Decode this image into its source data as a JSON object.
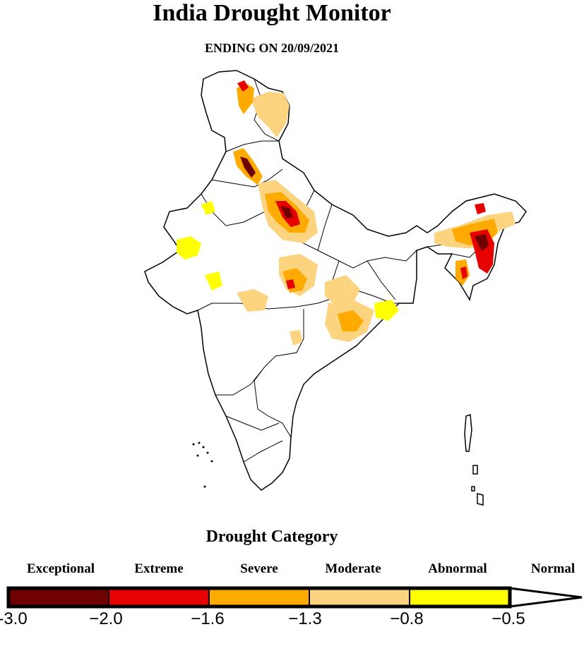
{
  "title": "India Drought Monitor",
  "subtitle": "ENDING ON 20/09/2021",
  "legend": {
    "title": "Drought Category",
    "categories": [
      {
        "label": "Exceptional",
        "color": "#6e0000"
      },
      {
        "label": "Extreme",
        "color": "#e60000"
      },
      {
        "label": "Severe",
        "color": "#ffaa00"
      },
      {
        "label": "Moderate",
        "color": "#fcd37f"
      },
      {
        "label": "Abnormal",
        "color": "#ffff00"
      },
      {
        "label": "Normal",
        "color": "#ffffff"
      }
    ],
    "ticks": [
      "-3.0",
      "−2.0",
      "−1.6",
      "−1.3",
      "−0.8",
      "−0.5"
    ]
  }
}
